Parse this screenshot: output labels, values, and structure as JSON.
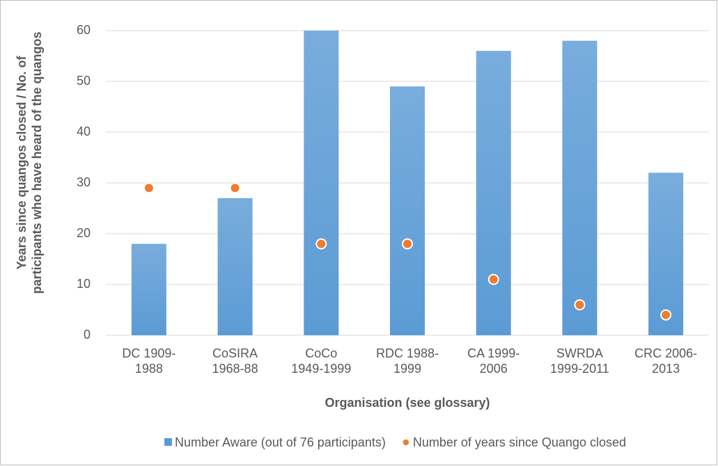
{
  "chart_data": {
    "type": "bar",
    "x_label": "Organisation (see glossary)",
    "y_label": "Years since quangos closed / No. of\nparticipants who have heard of the  quangos",
    "categories": [
      "DC 1909-\n1988",
      "CoSIRA\n1968-88",
      "CoCo\n1949-1999",
      "RDC 1988-\n1999",
      "CA 1999-\n2006",
      "SWRDA\n1999-2011",
      "CRC 2006-\n2013"
    ],
    "series": [
      {
        "name": "Number Aware (out of 76 participants)",
        "type": "bar",
        "color": "#5b9bd5",
        "values": [
          18,
          27,
          60,
          49,
          56,
          58,
          32
        ]
      },
      {
        "name": "Number of years since Quango closed",
        "type": "scatter",
        "color": "#ed7d31",
        "values": [
          29,
          29,
          18,
          18,
          11,
          6,
          4
        ]
      }
    ],
    "ylim": [
      0,
      60
    ],
    "yticks": [
      0,
      10,
      20,
      30,
      40,
      50,
      60
    ],
    "grid": true,
    "legend": "bottom"
  }
}
